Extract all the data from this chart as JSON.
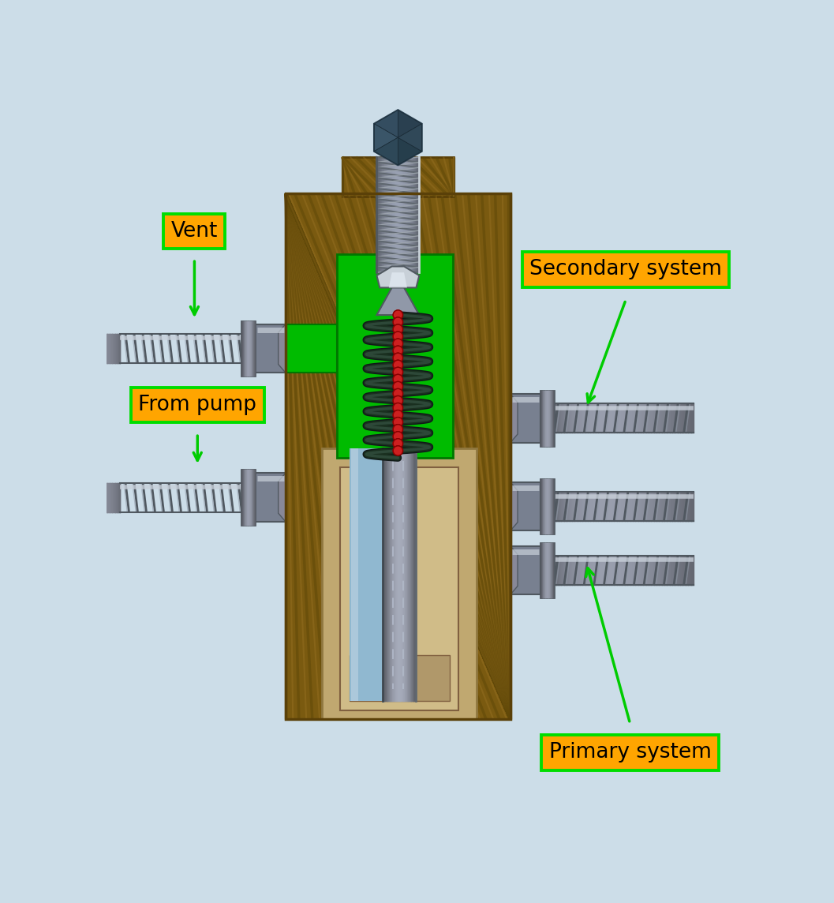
{
  "bg_color": "#ccdde8",
  "labels": {
    "vent": "Vent",
    "from_pump": "From pump",
    "secondary": "Secondary system",
    "primary": "Primary system"
  },
  "label_bg": "#ffa500",
  "label_border": "#00dd00",
  "arrow_color": "#00cc00",
  "wood_base": "#7a5a10",
  "wood_mid": "#8a6818",
  "wood_light": "#a07828",
  "wood_dark": "#5a4008",
  "wood_stripe": "#604808",
  "green": "#00bb00",
  "green_dark": "#007700",
  "spring_coil": "#1a3020",
  "spring_highlight": "#406050",
  "spring_red": "#cc2020",
  "bolt_color": "#2a4050",
  "bolt_light": "#3a5565",
  "silver_base": "#9098a8",
  "silver_mid": "#788090",
  "silver_light": "#c8d0d8",
  "silver_dark": "#505860",
  "tan_base": "#c0a870",
  "tan_light": "#d0bc88",
  "tan_dark": "#907840",
  "blue_fluid": "#90b8d0",
  "blue_fluid_light": "#b8d0e0",
  "pipe_base": "#888898",
  "pipe_dark": "#505860",
  "pipe_light": "#c0c8d0",
  "nut_base": "#707880",
  "nut_dark": "#484e58"
}
